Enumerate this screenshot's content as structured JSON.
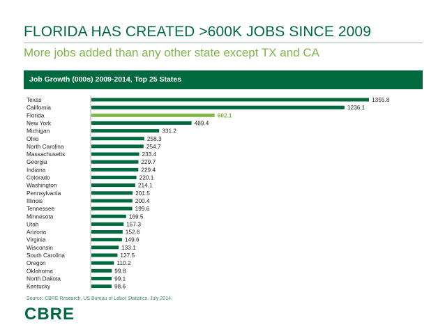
{
  "slide": {
    "title": "FLORIDA HAS CREATED >600K JOBS SINCE 2009",
    "subtitle": "More jobs added than any other state except TX and CA",
    "source": "Source: CBRE Research, US Bureau of Labor Statistics, July 2014.",
    "logo_text": "CBRE"
  },
  "colors": {
    "brand_green": "#00693E",
    "highlight_green": "#7FB54A",
    "subtitle_green": "#7FB54A"
  },
  "chart_data": {
    "type": "bar",
    "orientation": "horizontal",
    "title": "Job Growth (000s) 2009-2014, Top 25 States",
    "categories": [
      "Texas",
      "California",
      "Florida",
      "New York",
      "Michigan",
      "Ohio",
      "North Carolina",
      "Massachusetts",
      "Georgia",
      "Indiana",
      "Colorado",
      "Washington",
      "Pennsylvania",
      "Illinois",
      "Tennessee",
      "Minnesota",
      "Utah",
      "Arizona",
      "Virginia",
      "Wisconsin",
      "South Carolina",
      "Oregon",
      "Oklahoma",
      "North Dakota",
      "Kentucky"
    ],
    "values": [
      1355.8,
      1236.1,
      602.1,
      489.4,
      331.2,
      258.3,
      254.7,
      233.4,
      229.7,
      229.4,
      220.1,
      214.1,
      201.5,
      200.4,
      199.6,
      169.5,
      157.3,
      152.6,
      149.6,
      133.1,
      127.5,
      110.2,
      99.8,
      99.1,
      98.6
    ],
    "value_labels": [
      "1355.8",
      "1236.1",
      "602.1",
      "489.4",
      "331.2",
      "258.3",
      "254.7",
      "233.4",
      "229.7",
      "229.4",
      "220.1",
      "214.1",
      "201.5",
      "200.4",
      "199.6",
      "169.5",
      "157.3",
      "152.6",
      "149.6",
      "133.1",
      "127.5",
      "110.2",
      "99.8",
      "99.1",
      "98.6"
    ],
    "highlight": "Florida",
    "xlim": [
      0,
      1355.8
    ],
    "grid": false,
    "legend": "none"
  }
}
